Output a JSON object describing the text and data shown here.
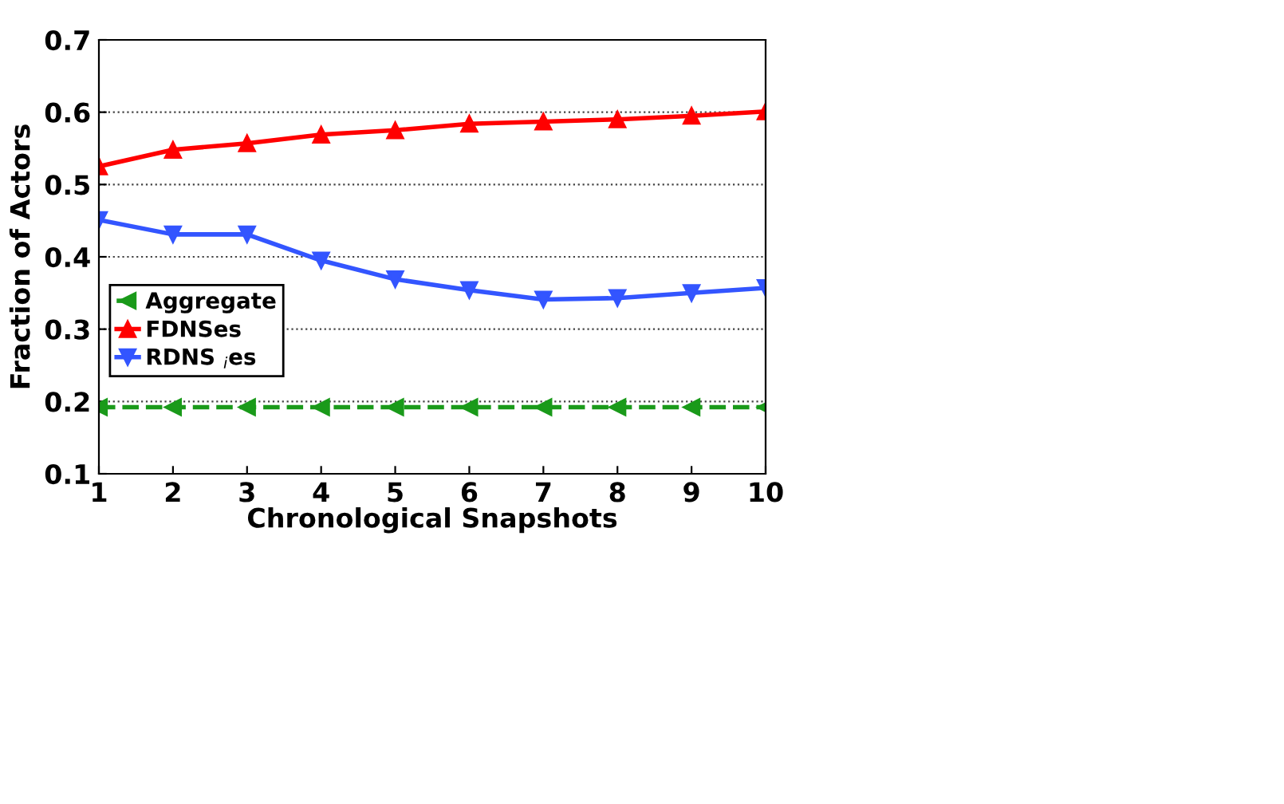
{
  "chart_data": {
    "type": "line",
    "xlabel": "Chronological Snapshots",
    "ylabel": "Fraction of Actors",
    "x": [
      1,
      2,
      3,
      4,
      5,
      6,
      7,
      8,
      9,
      10
    ],
    "series": [
      {
        "name": "Aggregate",
        "color": "#1a9a1a",
        "marker": "triangle_left",
        "line_style": "dashed",
        "values": [
          0.192,
          0.192,
          0.192,
          0.192,
          0.192,
          0.192,
          0.192,
          0.192,
          0.192,
          0.192
        ]
      },
      {
        "name": "FDNSes",
        "color": "#ff0000",
        "marker": "triangle",
        "line_style": "solid",
        "values": [
          0.525,
          0.548,
          0.557,
          0.569,
          0.575,
          0.584,
          0.587,
          0.59,
          0.595,
          0.601
        ]
      },
      {
        "name": "RDNS $_{i}$es",
        "color": "#3355ff",
        "marker": "triangle_down",
        "line_style": "solid",
        "values": [
          0.451,
          0.431,
          0.431,
          0.395,
          0.369,
          0.354,
          0.341,
          0.343,
          0.35,
          0.357
        ]
      }
    ],
    "xlim": [
      1,
      10
    ],
    "xticks": [
      1,
      2,
      3,
      4,
      5,
      6,
      7,
      8,
      9,
      10
    ],
    "ylim": [
      0.1,
      0.7
    ],
    "yticks": [
      0.1,
      0.2,
      0.3,
      0.4,
      0.5,
      0.6,
      0.7
    ],
    "grid": "y",
    "legend": "center left"
  }
}
